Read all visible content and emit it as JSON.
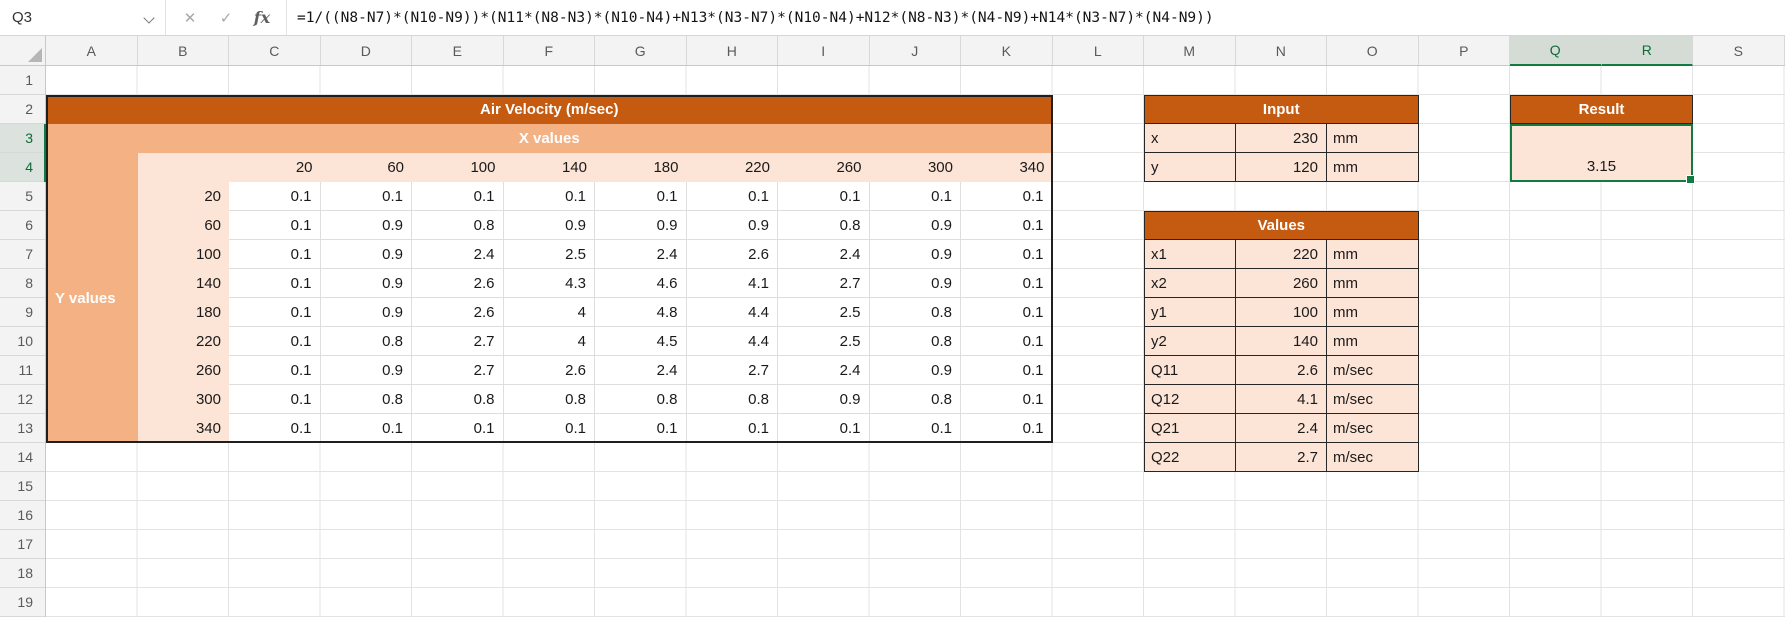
{
  "formula_bar": {
    "name_box": "Q3",
    "cancel_label": "✕",
    "enter_label": "✓",
    "fx_label": "fx",
    "formula": "=1/((N8-N7)*(N10-N9))*(N11*(N8-N3)*(N10-N4)+N13*(N3-N7)*(N10-N4)+N12*(N8-N3)*(N4-N9)+N14*(N3-N7)*(N4-N9))"
  },
  "sheet": {
    "column_letters": [
      "A",
      "B",
      "C",
      "D",
      "E",
      "F",
      "G",
      "H",
      "I",
      "J",
      "K",
      "L",
      "M",
      "N",
      "O",
      "P",
      "Q",
      "R",
      "S"
    ],
    "row_numbers": [
      1,
      2,
      3,
      4,
      5,
      6,
      7,
      8,
      9,
      10,
      11,
      12,
      13,
      14,
      15,
      16,
      17,
      18,
      19
    ],
    "selected_columns": [
      "Q",
      "R"
    ],
    "selected_rows": [
      3,
      4
    ],
    "active_cell": "Q3"
  },
  "colors": {
    "header_dark": "#C55A11",
    "header_medium": "#F4B183",
    "cell_fill": "#FCE4D6",
    "selection_green": "#107C41"
  },
  "velocity_table": {
    "title": "Air Velocity (m/sec)",
    "x_header": "X values",
    "y_header": "Y values",
    "x_values": [
      "20",
      "60",
      "100",
      "140",
      "180",
      "220",
      "260",
      "300",
      "340"
    ],
    "y_values": [
      "20",
      "60",
      "100",
      "140",
      "180",
      "220",
      "260",
      "300",
      "340"
    ],
    "data": [
      [
        "0.1",
        "0.1",
        "0.1",
        "0.1",
        "0.1",
        "0.1",
        "0.1",
        "0.1",
        "0.1"
      ],
      [
        "0.1",
        "0.9",
        "0.8",
        "0.9",
        "0.9",
        "0.9",
        "0.8",
        "0.9",
        "0.1"
      ],
      [
        "0.1",
        "0.9",
        "2.4",
        "2.5",
        "2.4",
        "2.6",
        "2.4",
        "0.9",
        "0.1"
      ],
      [
        "0.1",
        "0.9",
        "2.6",
        "4.3",
        "4.6",
        "4.1",
        "2.7",
        "0.9",
        "0.1"
      ],
      [
        "0.1",
        "0.9",
        "2.6",
        "4",
        "4.8",
        "4.4",
        "2.5",
        "0.8",
        "0.1"
      ],
      [
        "0.1",
        "0.8",
        "2.7",
        "4",
        "4.5",
        "4.4",
        "2.5",
        "0.8",
        "0.1"
      ],
      [
        "0.1",
        "0.9",
        "2.7",
        "2.6",
        "2.4",
        "2.7",
        "2.4",
        "0.9",
        "0.1"
      ],
      [
        "0.1",
        "0.8",
        "0.8",
        "0.8",
        "0.8",
        "0.8",
        "0.9",
        "0.8",
        "0.1"
      ],
      [
        "0.1",
        "0.1",
        "0.1",
        "0.1",
        "0.1",
        "0.1",
        "0.1",
        "0.1",
        "0.1"
      ]
    ]
  },
  "input_table": {
    "title": "Input",
    "rows": [
      {
        "label": "x",
        "value": "230",
        "unit": "mm"
      },
      {
        "label": "y",
        "value": "120",
        "unit": "mm"
      }
    ]
  },
  "values_table": {
    "title": "Values",
    "rows": [
      {
        "label": "x1",
        "value": "220",
        "unit": "mm"
      },
      {
        "label": "x2",
        "value": "260",
        "unit": "mm"
      },
      {
        "label": "y1",
        "value": "100",
        "unit": "mm"
      },
      {
        "label": "y2",
        "value": "140",
        "unit": "mm"
      },
      {
        "label": "Q11",
        "value": "2.6",
        "unit": "m/sec"
      },
      {
        "label": "Q12",
        "value": "4.1",
        "unit": "m/sec"
      },
      {
        "label": "Q21",
        "value": "2.4",
        "unit": "m/sec"
      },
      {
        "label": "Q22",
        "value": "2.7",
        "unit": "m/sec"
      }
    ]
  },
  "result_table": {
    "title": "Result",
    "value": "3.15"
  },
  "chart_data": {
    "type": "heatmap",
    "title": "Air Velocity (m/sec)",
    "xlabel": "X values",
    "ylabel": "Y values",
    "x": [
      20,
      60,
      100,
      140,
      180,
      220,
      260,
      300,
      340
    ],
    "y": [
      20,
      60,
      100,
      140,
      180,
      220,
      260,
      300,
      340
    ],
    "values": [
      [
        0.1,
        0.1,
        0.1,
        0.1,
        0.1,
        0.1,
        0.1,
        0.1,
        0.1
      ],
      [
        0.1,
        0.9,
        0.8,
        0.9,
        0.9,
        0.9,
        0.8,
        0.9,
        0.1
      ],
      [
        0.1,
        0.9,
        2.4,
        2.5,
        2.4,
        2.6,
        2.4,
        0.9,
        0.1
      ],
      [
        0.1,
        0.9,
        2.6,
        4.3,
        4.6,
        4.1,
        2.7,
        0.9,
        0.1
      ],
      [
        0.1,
        0.9,
        2.6,
        4.0,
        4.8,
        4.4,
        2.5,
        0.8,
        0.1
      ],
      [
        0.1,
        0.8,
        2.7,
        4.0,
        4.5,
        4.4,
        2.5,
        0.8,
        0.1
      ],
      [
        0.1,
        0.9,
        2.7,
        2.6,
        2.4,
        2.7,
        2.4,
        0.9,
        0.1
      ],
      [
        0.1,
        0.8,
        0.8,
        0.8,
        0.8,
        0.8,
        0.9,
        0.8,
        0.1
      ],
      [
        0.1,
        0.1,
        0.1,
        0.1,
        0.1,
        0.1,
        0.1,
        0.1,
        0.1
      ]
    ]
  }
}
